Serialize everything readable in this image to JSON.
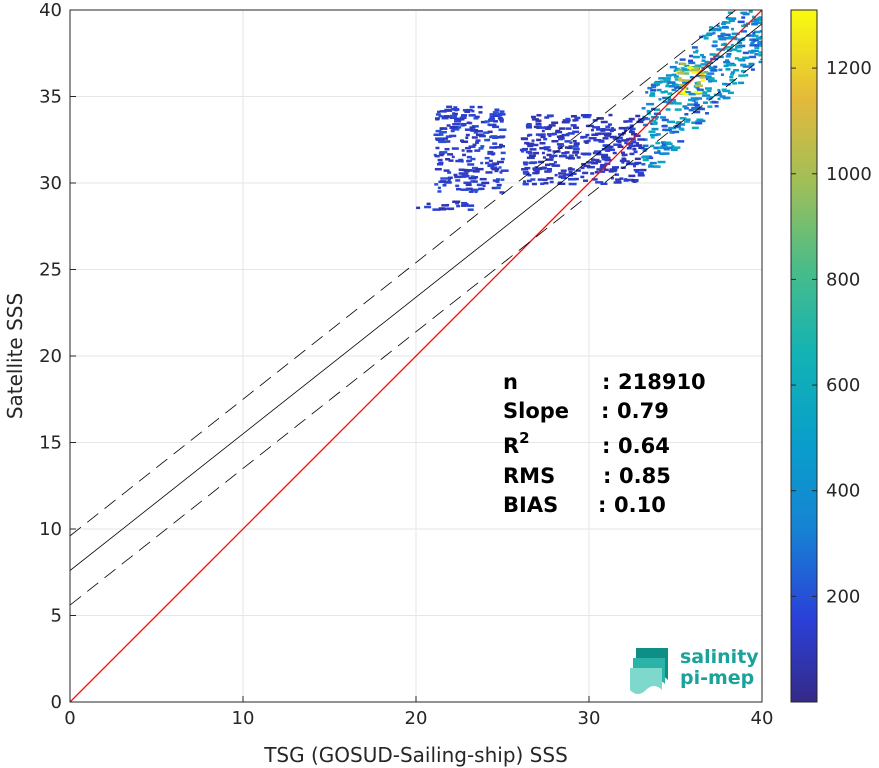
{
  "chart_data": {
    "type": "heatmap",
    "xlabel": "TSG (GOSUD-Sailing-ship) SSS",
    "ylabel": "Satellite SSS",
    "xlim": [
      0,
      40
    ],
    "ylim": [
      0,
      40
    ],
    "xticks": [
      0,
      10,
      20,
      30,
      40
    ],
    "yticks": [
      0,
      5,
      10,
      15,
      20,
      25,
      30,
      35,
      40
    ],
    "grid": true,
    "identity_line": {
      "slope": 1,
      "intercept": 0,
      "color": "#ff0000"
    },
    "fit_line": {
      "slope": 0.79,
      "intercept": 7.6,
      "color": "#000000"
    },
    "fit_bounds": [
      {
        "slope": 0.79,
        "intercept": 9.6
      },
      {
        "slope": 0.79,
        "intercept": 5.6
      }
    ],
    "stats": [
      {
        "label": "n",
        "sep": ":",
        "value": "218910"
      },
      {
        "label": "Slope",
        "sep": ":",
        "value": "0.79"
      },
      {
        "label": "R",
        "sup": "2",
        "sep": ":",
        "value": "0.64"
      },
      {
        "label": "RMS",
        "sep": ":",
        "value": "0.85"
      },
      {
        "label": "BIAS",
        "sep": ":",
        "value": "0.10"
      }
    ],
    "colorbar": {
      "colormap": "parula",
      "range": [
        0,
        1310
      ],
      "ticks": [
        200,
        400,
        600,
        800,
        1000,
        1200
      ]
    },
    "density_clusters": [
      {
        "x": [
          33,
          40
        ],
        "y": [
          31,
          40
        ],
        "level": 0.35
      },
      {
        "x": [
          35,
          36.5
        ],
        "y": [
          35,
          37
        ],
        "level": 0.85
      },
      {
        "x": [
          21,
          25
        ],
        "y": [
          29.5,
          34.5
        ],
        "level": 0.12
      },
      {
        "x": [
          20,
          23
        ],
        "y": [
          28.5,
          29
        ],
        "level": 0.1
      },
      {
        "x": [
          26,
          33
        ],
        "y": [
          30,
          34
        ],
        "level": 0.1
      }
    ]
  },
  "logo": {
    "line1": "salinity",
    "line2": "pi-mep"
  }
}
